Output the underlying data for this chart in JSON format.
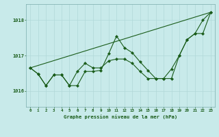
{
  "title": "Graphe pression niveau de la mer (hPa)",
  "bg_color": "#c8eaea",
  "grid_color": "#b0d8d8",
  "line_color": "#1a5c1a",
  "xlim": [
    -0.5,
    23.5
  ],
  "ylim": [
    1015.55,
    1018.45
  ],
  "yticks": [
    1016,
    1017,
    1018
  ],
  "xticks": [
    0,
    1,
    2,
    3,
    4,
    5,
    6,
    7,
    8,
    9,
    10,
    11,
    12,
    13,
    14,
    15,
    16,
    17,
    18,
    19,
    20,
    21,
    22,
    23
  ],
  "line1_x": [
    0,
    1,
    2,
    3,
    4,
    5,
    6,
    7,
    8,
    9,
    10,
    11,
    12,
    13,
    14,
    15,
    16,
    17,
    18,
    19,
    20,
    21,
    22,
    23
  ],
  "line1_y": [
    1016.65,
    1016.48,
    1016.15,
    1016.45,
    1016.45,
    1016.15,
    1016.15,
    1016.55,
    1016.55,
    1016.58,
    1017.05,
    1017.55,
    1017.22,
    1017.08,
    1016.82,
    1016.58,
    1016.35,
    1016.35,
    1016.35,
    1017.0,
    1017.45,
    1017.62,
    1018.0,
    1018.22
  ],
  "line2_x": [
    0,
    23
  ],
  "line2_y": [
    1016.65,
    1018.22
  ],
  "line3_x": [
    0,
    1,
    2,
    3,
    4,
    5,
    6,
    7,
    8,
    9,
    10,
    11,
    12,
    13,
    14,
    15,
    16,
    17,
    18,
    19,
    20,
    21,
    22,
    23
  ],
  "line3_y": [
    1016.65,
    1016.48,
    1016.15,
    1016.45,
    1016.45,
    1016.15,
    1016.55,
    1016.78,
    1016.65,
    1016.65,
    1016.85,
    1016.9,
    1016.9,
    1016.78,
    1016.55,
    1016.35,
    1016.35,
    1016.35,
    1016.62,
    1017.0,
    1017.45,
    1017.62,
    1017.62,
    1018.22
  ]
}
